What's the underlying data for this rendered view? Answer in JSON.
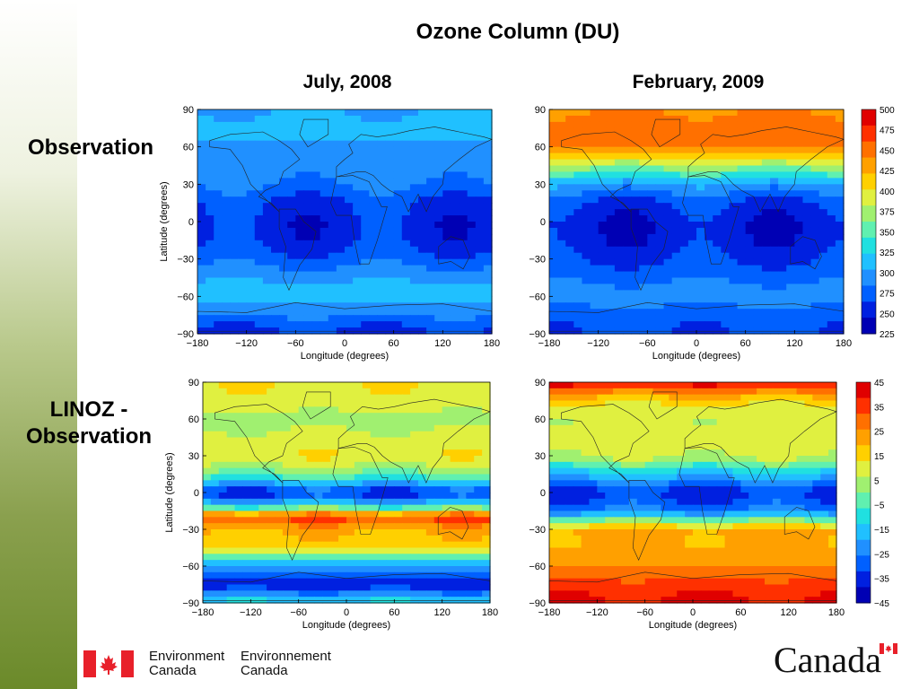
{
  "title": "Ozone Column (DU)",
  "columns": [
    "July, 2008",
    "February, 2009"
  ],
  "rows": [
    "Observation",
    "LINOZ -\nObservation"
  ],
  "footer": {
    "english_line1": "Environment",
    "english_line2": "Canada",
    "french_line1": "Environnement",
    "french_line2": "Canada",
    "wordmark": "Canada"
  },
  "colors": {
    "scale": [
      "#0000b4",
      "#0020e0",
      "#0060ff",
      "#2090ff",
      "#20c0ff",
      "#20e0e0",
      "#60f0b0",
      "#a0f070",
      "#e0f040",
      "#ffd000",
      "#ffa000",
      "#ff7000",
      "#ff3000",
      "#e00000"
    ]
  },
  "chart_data": [
    {
      "type": "heatmap",
      "panel": "observation-july-2008",
      "xlabel": "Longitude (degrees)",
      "ylabel": "Latitude (degrees)",
      "xlim": [
        -180,
        180
      ],
      "ylim": [
        -90,
        90
      ],
      "xticks": [
        "-180",
        "-120",
        "-60",
        "0",
        "60",
        "120",
        "180"
      ],
      "yticks": [
        "90",
        "60",
        "30",
        "0",
        "-30",
        "-60",
        "-90"
      ],
      "latitude_profile": [
        [
          90,
          300
        ],
        [
          75,
          315
        ],
        [
          60,
          300
        ],
        [
          45,
          295
        ],
        [
          30,
          285
        ],
        [
          15,
          262
        ],
        [
          0,
          255
        ],
        [
          -15,
          255
        ],
        [
          -30,
          275
        ],
        [
          -45,
          300
        ],
        [
          -60,
          315
        ],
        [
          -75,
          285
        ],
        [
          -90,
          255
        ]
      ]
    },
    {
      "type": "heatmap",
      "panel": "observation-february-2009",
      "xlabel": "Longitude (degrees)",
      "ylabel": "",
      "xlim": [
        -180,
        180
      ],
      "ylim": [
        -90,
        90
      ],
      "xticks": [
        "-180",
        "-120",
        "-60",
        "0",
        "60",
        "120",
        "180"
      ],
      "yticks": [
        "90",
        "60",
        "30",
        "0",
        "-30",
        "-60",
        "-90"
      ],
      "colorbar": {
        "labels": [
          "500",
          "475",
          "450",
          "425",
          "400",
          "375",
          "350",
          "325",
          "300",
          "275",
          "250",
          "225"
        ],
        "range": [
          225,
          500
        ]
      },
      "latitude_profile": [
        [
          90,
          440
        ],
        [
          75,
          455
        ],
        [
          60,
          440
        ],
        [
          45,
          375
        ],
        [
          30,
          300
        ],
        [
          15,
          262
        ],
        [
          0,
          250
        ],
        [
          -15,
          252
        ],
        [
          -30,
          262
        ],
        [
          -45,
          280
        ],
        [
          -60,
          292
        ],
        [
          -75,
          275
        ],
        [
          -90,
          265
        ]
      ]
    },
    {
      "type": "heatmap",
      "panel": "linoz-minus-observation-july-2008",
      "xlabel": "Longitude (degrees)",
      "ylabel": "Latitude (degrees)",
      "xlim": [
        -180,
        180
      ],
      "ylim": [
        -90,
        90
      ],
      "xticks": [
        "-180",
        "-120",
        "-60",
        "0",
        "60",
        "120",
        "180"
      ],
      "yticks": [
        "90",
        "60",
        "30",
        "0",
        "-30",
        "-60",
        "-90"
      ],
      "latitude_profile": [
        [
          90,
          12
        ],
        [
          75,
          10
        ],
        [
          60,
          4
        ],
        [
          45,
          8
        ],
        [
          30,
          12
        ],
        [
          15,
          0
        ],
        [
          0,
          -35
        ],
        [
          -10,
          -15
        ],
        [
          -20,
          35
        ],
        [
          -30,
          20
        ],
        [
          -45,
          15
        ],
        [
          -60,
          -20
        ],
        [
          -75,
          -38
        ],
        [
          -90,
          -10
        ]
      ]
    },
    {
      "type": "heatmap",
      "panel": "linoz-minus-observation-february-2009",
      "xlabel": "Longitude (degrees)",
      "ylabel": "",
      "xlim": [
        -180,
        180
      ],
      "ylim": [
        -90,
        90
      ],
      "xticks": [
        "-180",
        "-120",
        "-60",
        "0",
        "60",
        "120",
        "180"
      ],
      "yticks": [
        "90",
        "60",
        "30",
        "0",
        "-30",
        "-60",
        "-90"
      ],
      "colorbar": {
        "labels": [
          "45",
          "35",
          "25",
          "15",
          "5",
          "−5",
          "−15",
          "−25",
          "−35",
          "−45"
        ],
        "range": [
          -45,
          45
        ]
      },
      "latitude_profile": [
        [
          90,
          40
        ],
        [
          75,
          15
        ],
        [
          60,
          6
        ],
        [
          45,
          10
        ],
        [
          30,
          8
        ],
        [
          15,
          -15
        ],
        [
          0,
          -35
        ],
        [
          -15,
          -25
        ],
        [
          -30,
          22
        ],
        [
          -45,
          20
        ],
        [
          -60,
          25
        ],
        [
          -75,
          35
        ],
        [
          -90,
          40
        ]
      ]
    }
  ]
}
